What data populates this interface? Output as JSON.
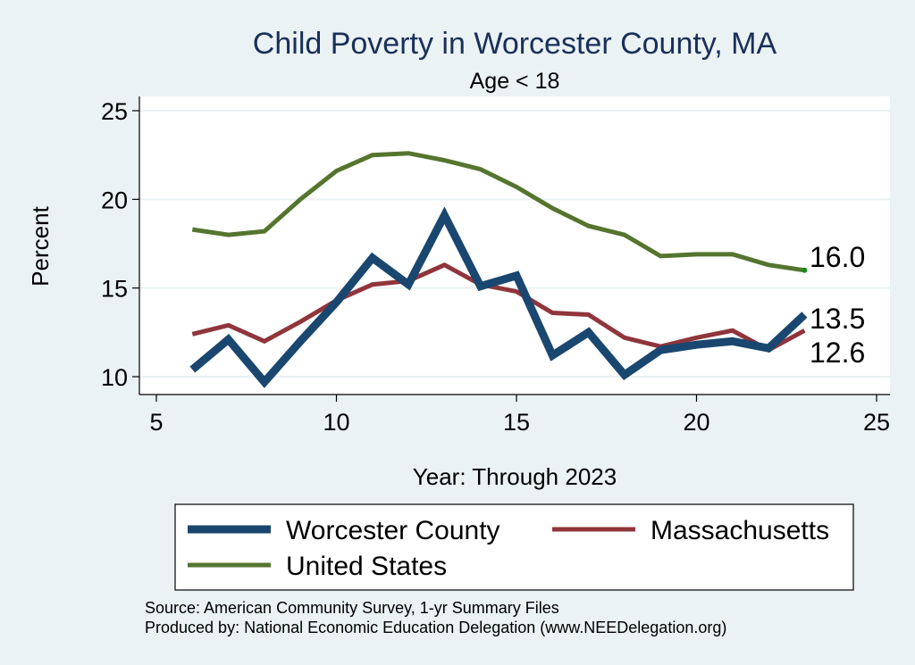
{
  "chart_data": {
    "type": "line",
    "title": "Child Poverty in Worcester County, MA",
    "subtitle": "Age < 18",
    "xlabel": "Year: Through 2023",
    "ylabel": "Percent",
    "xlim": [
      5,
      25
    ],
    "ylim": [
      10,
      25
    ],
    "xticks": [
      5,
      10,
      15,
      20,
      25
    ],
    "yticks": [
      10,
      15,
      20,
      25
    ],
    "grid": true,
    "legend_position": "bottom",
    "series": [
      {
        "name": "Worcester County",
        "color": "#1a476f",
        "x": [
          6,
          7,
          8,
          9,
          10,
          11,
          12,
          13,
          14,
          15,
          16,
          17,
          18,
          19,
          20,
          21,
          22,
          23
        ],
        "values": [
          10.4,
          12.1,
          9.7,
          12.0,
          14.2,
          16.7,
          15.2,
          19.1,
          15.1,
          15.7,
          11.2,
          12.5,
          10.1,
          11.5,
          11.8,
          12.0,
          11.6,
          13.5
        ]
      },
      {
        "name": "Massachusetts",
        "color": "#90353b",
        "x": [
          6,
          7,
          8,
          9,
          10,
          11,
          12,
          13,
          14,
          15,
          16,
          17,
          18,
          19,
          20,
          21,
          22,
          23
        ],
        "values": [
          12.4,
          12.9,
          12.0,
          13.1,
          14.3,
          15.2,
          15.4,
          16.3,
          15.2,
          14.8,
          13.6,
          13.5,
          12.2,
          11.7,
          12.2,
          12.6,
          11.5,
          12.6
        ]
      },
      {
        "name": "United States",
        "color": "#55752f",
        "x": [
          6,
          7,
          8,
          9,
          10,
          11,
          12,
          13,
          14,
          15,
          16,
          17,
          18,
          19,
          20,
          21,
          22,
          23
        ],
        "values": [
          18.3,
          18.0,
          18.2,
          20.0,
          21.6,
          22.5,
          22.6,
          22.2,
          21.7,
          20.7,
          19.5,
          18.5,
          18.0,
          16.8,
          16.9,
          16.9,
          16.3,
          16.0
        ]
      }
    ],
    "end_labels": [
      "16.0",
      "13.5",
      "12.6"
    ]
  },
  "colors": {
    "background": "#eaf2f3",
    "plot_background": "#ffffff",
    "title": "#1a2f5a",
    "grid": "#eaf2f3",
    "highlight_dot": "#1a8a1a"
  },
  "notes": {
    "source": "Source: American Community Survey, 1-yr Summary Files",
    "produced_by": "Produced by: National Economic Education Delegation (www.NEEDelegation.org)"
  }
}
